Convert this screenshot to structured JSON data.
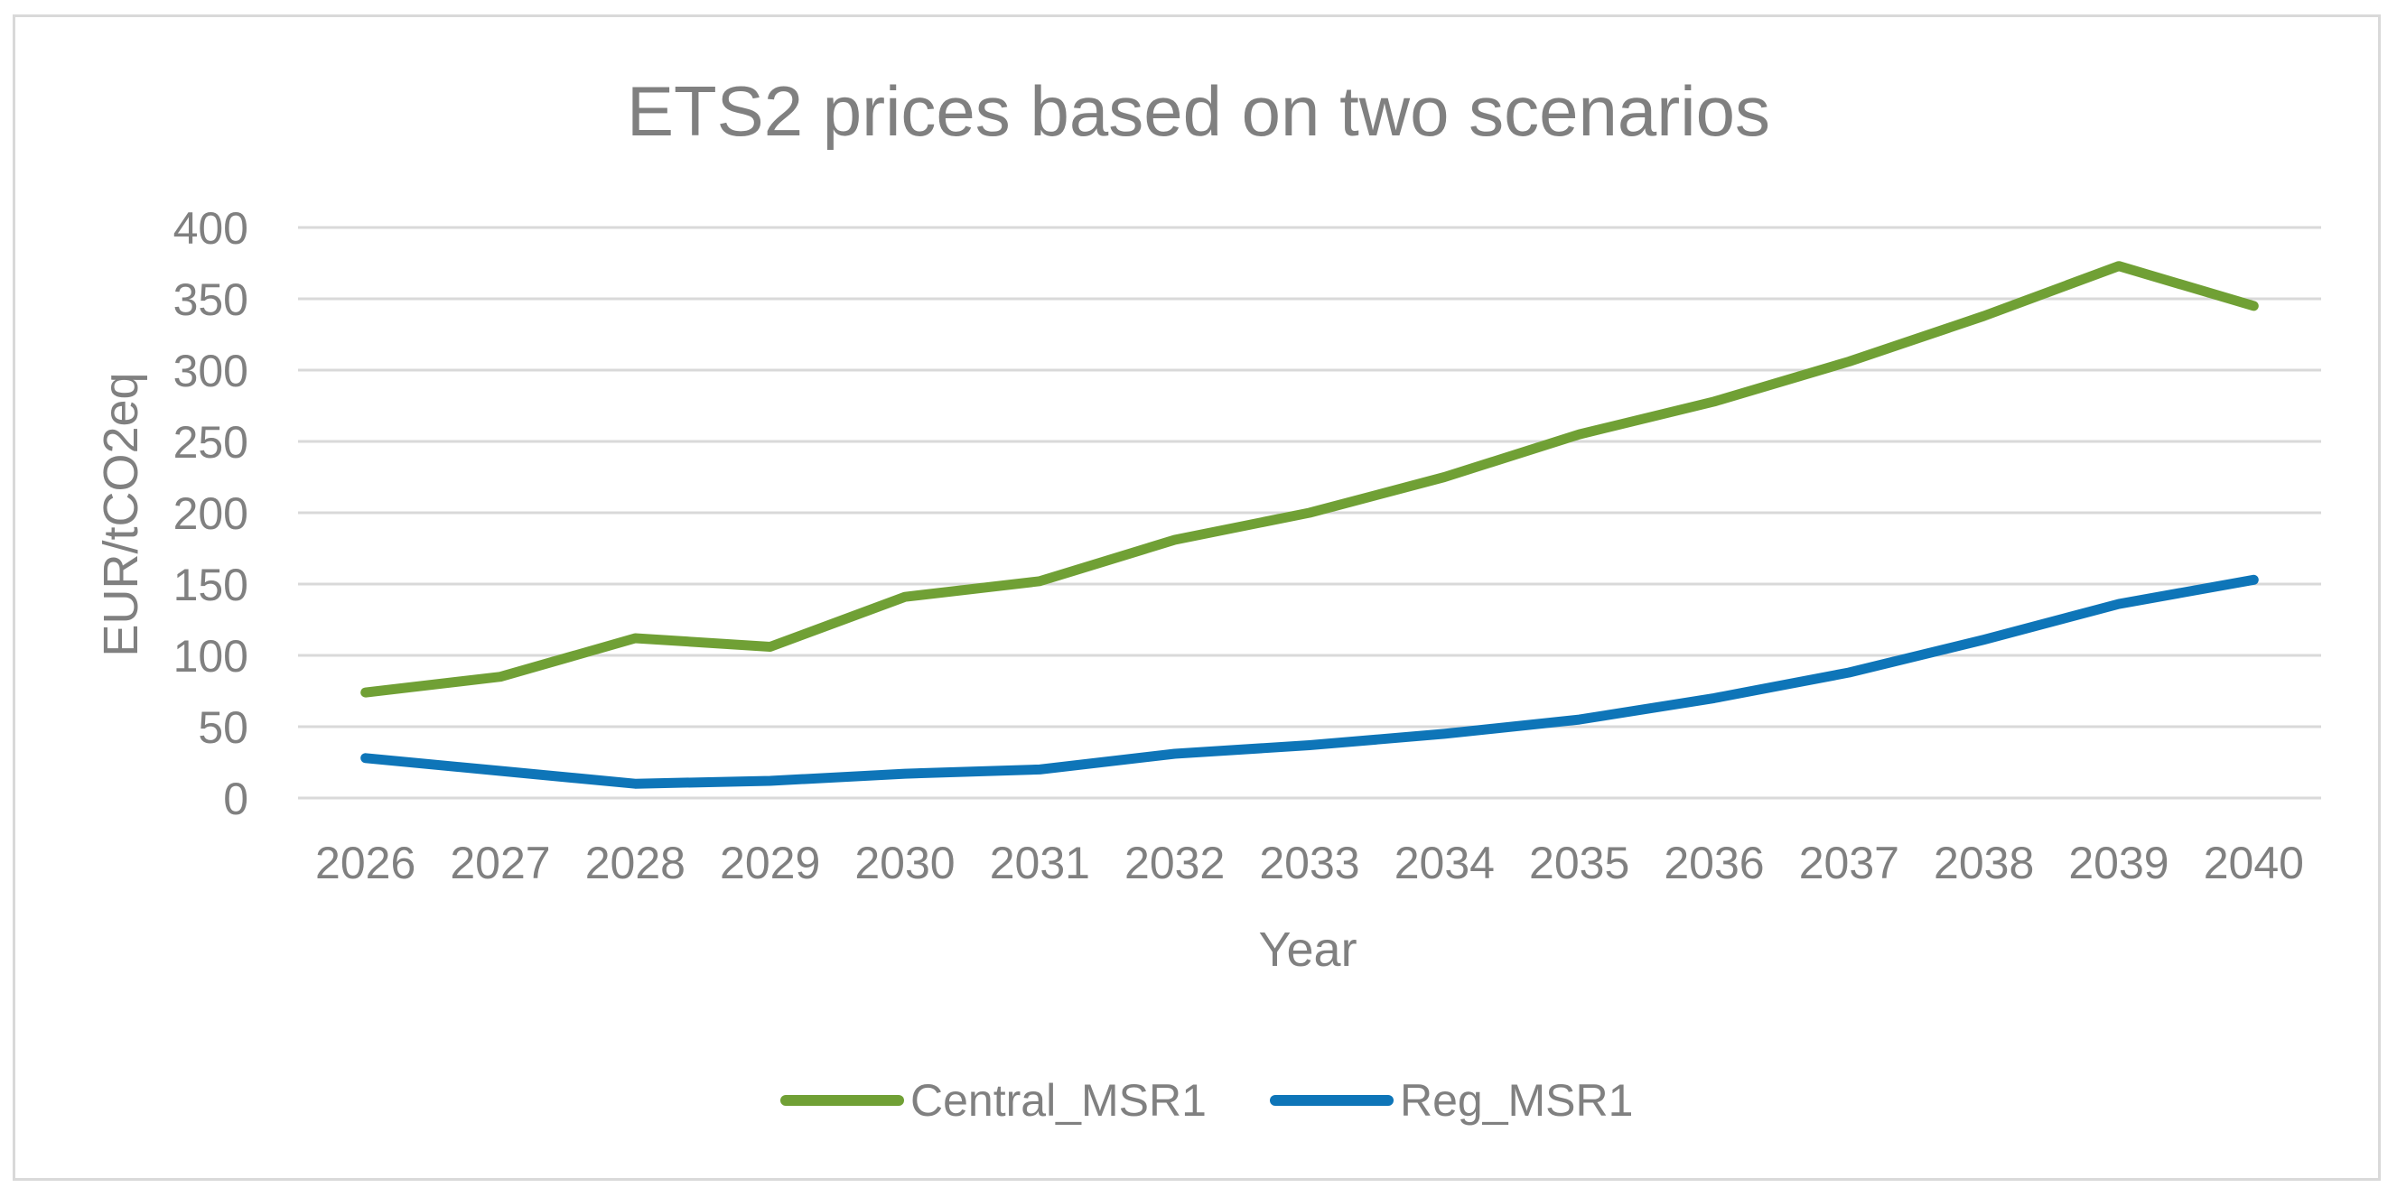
{
  "chart_data": {
    "type": "line",
    "title": "ETS2 prices based on two scenarios",
    "xlabel": "Year",
    "ylabel": "EUR/tCO2eq",
    "categories": [
      "2026",
      "2027",
      "2028",
      "2029",
      "2030",
      "2031",
      "2032",
      "2033",
      "2034",
      "2035",
      "2036",
      "2037",
      "2038",
      "2039",
      "2040"
    ],
    "ylim": [
      0,
      400
    ],
    "yticks": [
      0,
      50,
      100,
      150,
      200,
      250,
      300,
      350,
      400
    ],
    "grid": true,
    "legend_position": "bottom",
    "series": [
      {
        "name": "Central_MSR1",
        "color": "#70a035",
        "values": [
          74,
          85,
          112,
          106,
          141,
          152,
          181,
          200,
          225,
          255,
          278,
          306,
          338,
          373,
          345
        ]
      },
      {
        "name": "Reg_MSR1",
        "color": "#0e75b8",
        "values": [
          28,
          19,
          10,
          12,
          17,
          20,
          31,
          37,
          45,
          55,
          70,
          88,
          111,
          136,
          153
        ]
      }
    ]
  }
}
